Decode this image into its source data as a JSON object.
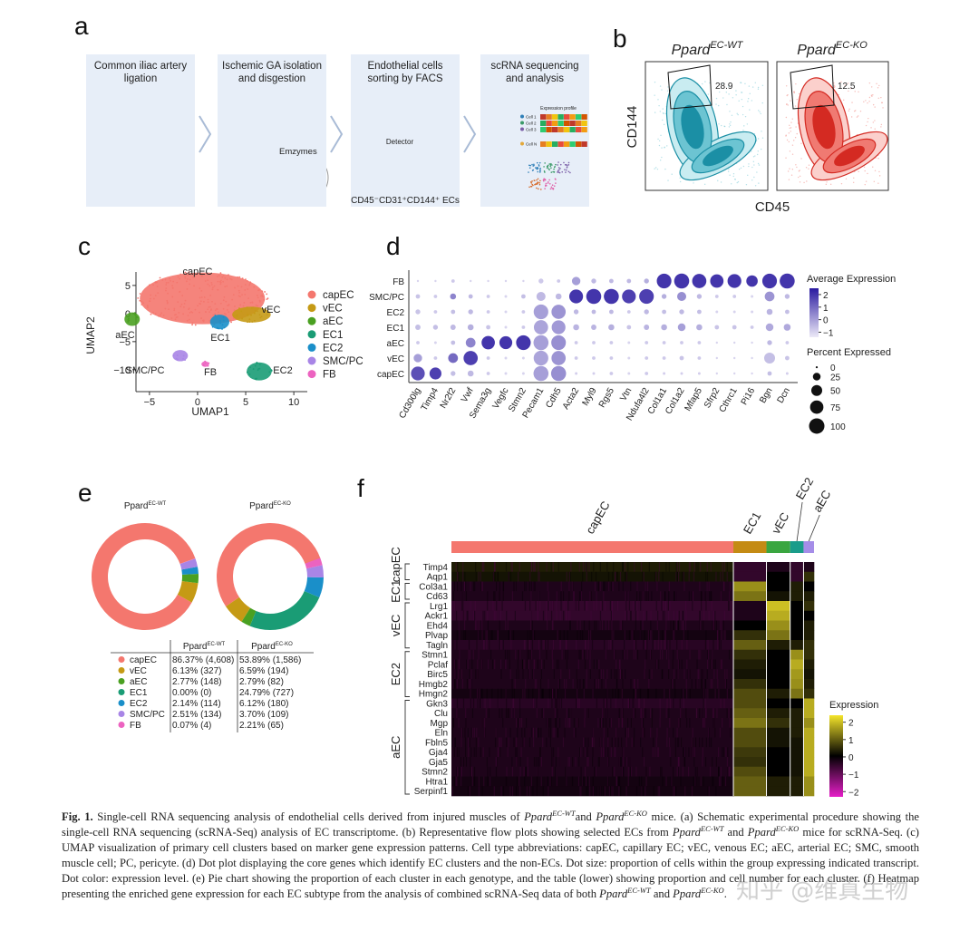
{
  "a": {
    "label": "a",
    "steps": [
      [
        "Common iliac artery",
        "ligation"
      ],
      [
        "Ischemic GA isolation",
        "and disgestion"
      ],
      [
        "Endothelial cells",
        "sorting by FACS"
      ],
      [
        "scRNA sequencing",
        "and analysis"
      ]
    ],
    "enzymes": "Emzymes",
    "detector": "Detector",
    "sorted": "CD45⁻CD31⁺CD144⁺ ECs",
    "profile": "Expression profile",
    "cells": [
      "Cell 1",
      "Cell 2",
      "Cell 3",
      "Cell N"
    ]
  },
  "b": {
    "label": "b",
    "plots": [
      {
        "name": "Ppard",
        "sup": "EC-WT",
        "gate": "28.9"
      },
      {
        "name": "Ppard",
        "sup": "EC-KO",
        "gate": "12.5"
      }
    ],
    "ylabel": "CD144",
    "xlabel": "CD45"
  },
  "c": {
    "label": "c",
    "xlabel": "UMAP1",
    "ylabel": "UMAP2",
    "xlim": [
      -6.4,
      11.4
    ],
    "ylim": [
      -13.9,
      7.4
    ],
    "xticks": [
      {
        "value": -5,
        "label": "−5"
      },
      0,
      5,
      10
    ],
    "yticks": [
      5,
      0,
      {
        "value": -5,
        "label": "−5"
      },
      {
        "value": -10,
        "label": "−10"
      }
    ],
    "clusters": [
      {
        "name": "capEC",
        "color": "#f4776e",
        "x": 0.5,
        "y": 2.7,
        "rx": 6.5,
        "ry": 4.6
      },
      {
        "name": "vEC",
        "color": "#c59a15",
        "x": 5.6,
        "y": -0.2,
        "rx": 2.0,
        "ry": 1.4
      },
      {
        "name": "aEC",
        "color": "#4aa021",
        "x": -6.8,
        "y": -1.0,
        "rx": 0.8,
        "ry": 1.2
      },
      {
        "name": "EC1",
        "color": "#1a9c75",
        "x": 6.4,
        "y": -10.3,
        "rx": 1.3,
        "ry": 1.6
      },
      {
        "name": "EC2",
        "color": "#1a8fc9",
        "x": 2.3,
        "y": -1.5,
        "rx": 1.0,
        "ry": 1.3
      },
      {
        "name": "SMC/PC",
        "color": "#a885e6",
        "x": -1.8,
        "y": -7.5,
        "rx": 0.8,
        "ry": 1.0
      },
      {
        "name": "FB",
        "color": "#ec63c0",
        "x": 0.8,
        "y": -9.0,
        "rx": 0.4,
        "ry": 0.5
      }
    ]
  },
  "d": {
    "label": "d",
    "genes": [
      "Cd300lg",
      "Timp4",
      "Nr2f2",
      "Vwf",
      "Sema3g",
      "Vegfc",
      "Stmn2",
      "Pecam1",
      "Cdh5",
      "Acta2",
      "Myl9",
      "Rgs5",
      "Vtn",
      "Ndufa4l2",
      "Col1a1",
      "Col1a2",
      "Mfap5",
      "Sfrp2",
      "Cthrc1",
      "Pi16",
      "Bgn",
      "Dcn"
    ],
    "rows": [
      {
        "name": "FB",
        "percent": [
          2,
          2,
          5,
          2,
          2,
          2,
          2,
          10,
          5,
          30,
          10,
          8,
          8,
          10,
          90,
          95,
          85,
          75,
          80,
          55,
          90,
          95
        ],
        "expression": [
          -1,
          -1,
          -0.8,
          -1,
          -1,
          -1,
          -1,
          -0.8,
          -0.8,
          0,
          -0.5,
          -0.5,
          -0.5,
          -0.3,
          2,
          2,
          2,
          2,
          2,
          2,
          2,
          2
        ]
      },
      {
        "name": "SMC/PC",
        "percent": [
          8,
          5,
          15,
          8,
          5,
          3,
          8,
          35,
          15,
          80,
          95,
          95,
          80,
          90,
          10,
          35,
          10,
          5,
          5,
          3,
          40,
          10
        ],
        "expression": [
          -0.7,
          -0.8,
          0.5,
          -0.5,
          -0.8,
          -1,
          -0.6,
          -0.5,
          -0.5,
          2,
          2,
          2,
          1.8,
          1.8,
          -0.3,
          0.3,
          -0.5,
          -0.8,
          -0.8,
          -1,
          0.2,
          -0.5
        ]
      },
      {
        "name": "EC2",
        "percent": [
          10,
          5,
          8,
          10,
          5,
          3,
          5,
          90,
          85,
          10,
          8,
          8,
          5,
          10,
          8,
          10,
          8,
          3,
          3,
          3,
          15,
          8
        ],
        "expression": [
          -0.7,
          -0.8,
          -0.6,
          -0.5,
          -0.8,
          -1,
          -0.8,
          0,
          0.2,
          -0.5,
          -0.5,
          -0.5,
          -0.8,
          -0.5,
          -0.6,
          -0.5,
          -0.6,
          -1,
          -1,
          -1,
          -0.4,
          -0.6
        ]
      },
      {
        "name": "EC1",
        "percent": [
          12,
          10,
          12,
          15,
          8,
          3,
          5,
          85,
          80,
          15,
          12,
          15,
          8,
          12,
          15,
          25,
          15,
          8,
          8,
          5,
          25,
          20
        ],
        "expression": [
          -0.6,
          -0.6,
          -0.5,
          -0.3,
          -0.7,
          -1,
          -0.8,
          -0.1,
          0.1,
          -0.4,
          -0.4,
          -0.3,
          -0.7,
          -0.4,
          -0.3,
          0,
          -0.3,
          -0.7,
          -0.7,
          -0.8,
          -0.2,
          -0.2
        ]
      },
      {
        "name": "aEC",
        "percent": [
          5,
          3,
          8,
          40,
          75,
          70,
          90,
          95,
          90,
          5,
          5,
          5,
          3,
          5,
          5,
          5,
          5,
          2,
          2,
          2,
          10,
          5
        ],
        "expression": [
          -0.8,
          -1,
          -0.6,
          0.5,
          2,
          2,
          2,
          0,
          0.3,
          -0.8,
          -0.8,
          -0.8,
          -1,
          -0.8,
          -0.8,
          -0.8,
          -0.8,
          -1,
          -1,
          -1,
          -0.5,
          -0.8
        ]
      },
      {
        "name": "vEC",
        "percent": [
          30,
          5,
          40,
          85,
          5,
          3,
          3,
          90,
          85,
          5,
          5,
          5,
          3,
          5,
          5,
          8,
          5,
          2,
          2,
          2,
          50,
          8
        ],
        "expression": [
          0,
          -0.8,
          1,
          1.8,
          -0.8,
          -1,
          -1,
          -0.1,
          0.2,
          -0.8,
          -0.8,
          -0.8,
          -1,
          -0.8,
          -0.8,
          -0.7,
          -0.8,
          -1,
          -1,
          -1,
          -0.6,
          -0.7
        ]
      },
      {
        "name": "capEC",
        "percent": [
          80,
          60,
          10,
          15,
          5,
          3,
          3,
          95,
          95,
          3,
          3,
          5,
          3,
          5,
          3,
          3,
          3,
          2,
          2,
          2,
          8,
          3
        ],
        "expression": [
          1.5,
          1.8,
          -0.6,
          -0.5,
          -0.8,
          -1,
          -1,
          0,
          0.3,
          -0.9,
          -0.9,
          -0.8,
          -1,
          -0.8,
          -0.9,
          -0.9,
          -0.9,
          -1,
          -1,
          -1,
          -0.6,
          -0.9
        ]
      }
    ],
    "color_title": "Average Expression",
    "colorlim": [
      -1.4,
      2.5
    ],
    "color_ticks": [
      2,
      1,
      0,
      {
        "value": -1,
        "label": "−1"
      }
    ],
    "size_title": "Percent Expressed",
    "size_ticks": [
      0,
      25,
      50,
      75,
      100
    ]
  },
  "e": {
    "label": "e",
    "titles": [
      {
        "name": "Ppard",
        "sup": "EC-WT"
      },
      {
        "name": "Ppard",
        "sup": "EC-KO"
      }
    ],
    "wt": [
      86.37,
      6.13,
      2.77,
      0.0,
      2.14,
      2.51,
      0.07
    ],
    "ko": [
      53.89,
      6.59,
      2.79,
      24.79,
      6.12,
      3.7,
      2.21
    ],
    "wt_labels": [
      "86.37% (4,608)",
      "6.13% (327)",
      "2.77% (148)",
      "0.00% (0)",
      "2.14% (114)",
      "2.51% (134)",
      "0.07% (4)"
    ],
    "ko_labels": [
      "53.89% (1,586)",
      "6.59% (194)",
      "2.79% (82)",
      "24.79% (727)",
      "6.12% (180)",
      "3.70% (109)",
      "2.21% (65)"
    ]
  },
  "f": {
    "label": "f",
    "clusters": [
      {
        "name": "capEC",
        "color": "#f4776e",
        "cells": 6194
      },
      {
        "name": "EC1",
        "color": "#c48b14",
        "cells": 727
      },
      {
        "name": "vEC",
        "color": "#3aa640",
        "cells": 521
      },
      {
        "name": "EC2",
        "color": "#1a9c8a",
        "cells": 294
      },
      {
        "name": "aEC",
        "color": "#a58de8",
        "cells": 230
      }
    ],
    "groups": [
      {
        "name": "capEC",
        "genes": [
          {
            "name": "Timp4",
            "values": [
              0.3,
              -0.5,
              -0.3,
              -0.5,
              -0.3
            ]
          },
          {
            "name": "Aqp1",
            "values": [
              0.2,
              -0.5,
              0,
              -0.5,
              0.5
            ]
          }
        ]
      },
      {
        "name": "EC1",
        "genes": [
          {
            "name": "Col3a1",
            "values": [
              -0.3,
              1.5,
              0,
              0.3,
              0
            ]
          },
          {
            "name": "Cd63",
            "values": [
              -0.3,
              1.2,
              0.2,
              0.3,
              0.3
            ]
          }
        ]
      },
      {
        "name": "vEC",
        "genes": [
          {
            "name": "Lrg1",
            "values": [
              -0.5,
              -0.3,
              2,
              0,
              0.5
            ]
          },
          {
            "name": "Ackr1",
            "values": [
              -0.5,
              -0.3,
              1.8,
              0,
              0
            ]
          },
          {
            "name": "Ehd4",
            "values": [
              -0.3,
              0,
              1.5,
              0,
              0.3
            ]
          },
          {
            "name": "Plvap",
            "values": [
              -0.2,
              0.5,
              1.2,
              0,
              0.3
            ]
          },
          {
            "name": "Tagln",
            "values": [
              -0.4,
              1.0,
              0.3,
              0.3,
              0.5
            ]
          }
        ]
      },
      {
        "name": "EC2",
        "genes": [
          {
            "name": "Stmn1",
            "values": [
              -0.3,
              0.5,
              0,
              1.5,
              0.5
            ]
          },
          {
            "name": "Pclaf",
            "values": [
              -0.3,
              0.3,
              0,
              1.8,
              0.3
            ]
          },
          {
            "name": "Birc5",
            "values": [
              -0.3,
              0.2,
              0,
              1.6,
              0.2
            ]
          },
          {
            "name": "Hmgb2",
            "values": [
              -0.3,
              0.5,
              0,
              1.5,
              0.3
            ]
          },
          {
            "name": "Hmgn2",
            "values": [
              -0.2,
              0.8,
              0.3,
              1.2,
              0.5
            ]
          }
        ]
      },
      {
        "name": "aEC",
        "genes": [
          {
            "name": "Gkn3",
            "values": [
              -0.4,
              0.8,
              0,
              0,
              1.8
            ]
          },
          {
            "name": "Clu",
            "values": [
              -0.3,
              1.0,
              0.3,
              0.3,
              1.8
            ]
          },
          {
            "name": "Mgp",
            "values": [
              -0.3,
              1.2,
              0.5,
              0.3,
              1.5
            ]
          },
          {
            "name": "Eln",
            "values": [
              -0.3,
              0.8,
              0.2,
              0.3,
              1.8
            ]
          },
          {
            "name": "Fbln5",
            "values": [
              -0.3,
              0.8,
              0.2,
              0.2,
              1.8
            ]
          },
          {
            "name": "Gja4",
            "values": [
              -0.3,
              0.6,
              0,
              0.2,
              1.8
            ]
          },
          {
            "name": "Gja5",
            "values": [
              -0.3,
              0.5,
              0,
              0.2,
              1.8
            ]
          },
          {
            "name": "Stmn2",
            "values": [
              -0.3,
              0.8,
              0,
              0.2,
              1.8
            ]
          },
          {
            "name": "Htra1",
            "values": [
              -0.2,
              1.0,
              0.3,
              0.3,
              1.5
            ]
          },
          {
            "name": "Serpinf1",
            "values": [
              -0.2,
              1.0,
              0.3,
              0.3,
              1.5
            ]
          }
        ]
      }
    ],
    "legend_title": "Expression",
    "colorlim": [
      -2.3,
      2.4
    ],
    "color_ticks": [
      2,
      1,
      0,
      {
        "value": -1,
        "label": "−1"
      },
      {
        "value": -2,
        "label": "−2"
      }
    ]
  },
  "caption": [
    "Fig. 1.",
    " Single-cell RNA sequencing analysis of endothelial cells derived from injured muscles of ",
    "Ppard",
    "EC-WT",
    "and ",
    "Ppard",
    "EC-KO",
    " mice. (a) Schematic experimental procedure showing the single-cell RNA sequencing (scRNA-Seq) analysis of EC transcriptome. (b) Representative flow plots showing selected ECs from ",
    "Ppard",
    "EC-WT",
    " and ",
    "Ppard",
    "EC-KO",
    " mice for scRNA-Seq. (c) UMAP visualization of primary cell clusters based on marker gene expression patterns. Cell type abbreviations: capEC, capillary EC; vEC, venous EC; aEC, arterial EC; SMC, smooth muscle cell; PC, pericyte. (d) Dot plot displaying the core genes which identify EC clusters and the non-ECs. Dot size: proportion of cells within the group expressing indicated transcript. Dot color: expression level. (e) Pie chart showing the proportion of each cluster in each genotype, and the table (lower) showing proportion and cell number for each cluster. (f) Heatmap presenting the enriched gene expression for each EC subtype from the analysis of combined scRNA-Seq data of both ",
    "Ppard",
    "EC-WT",
    " and ",
    "Ppard",
    "EC-KO",
    "."
  ],
  "watermark": "知乎 @维真生物"
}
